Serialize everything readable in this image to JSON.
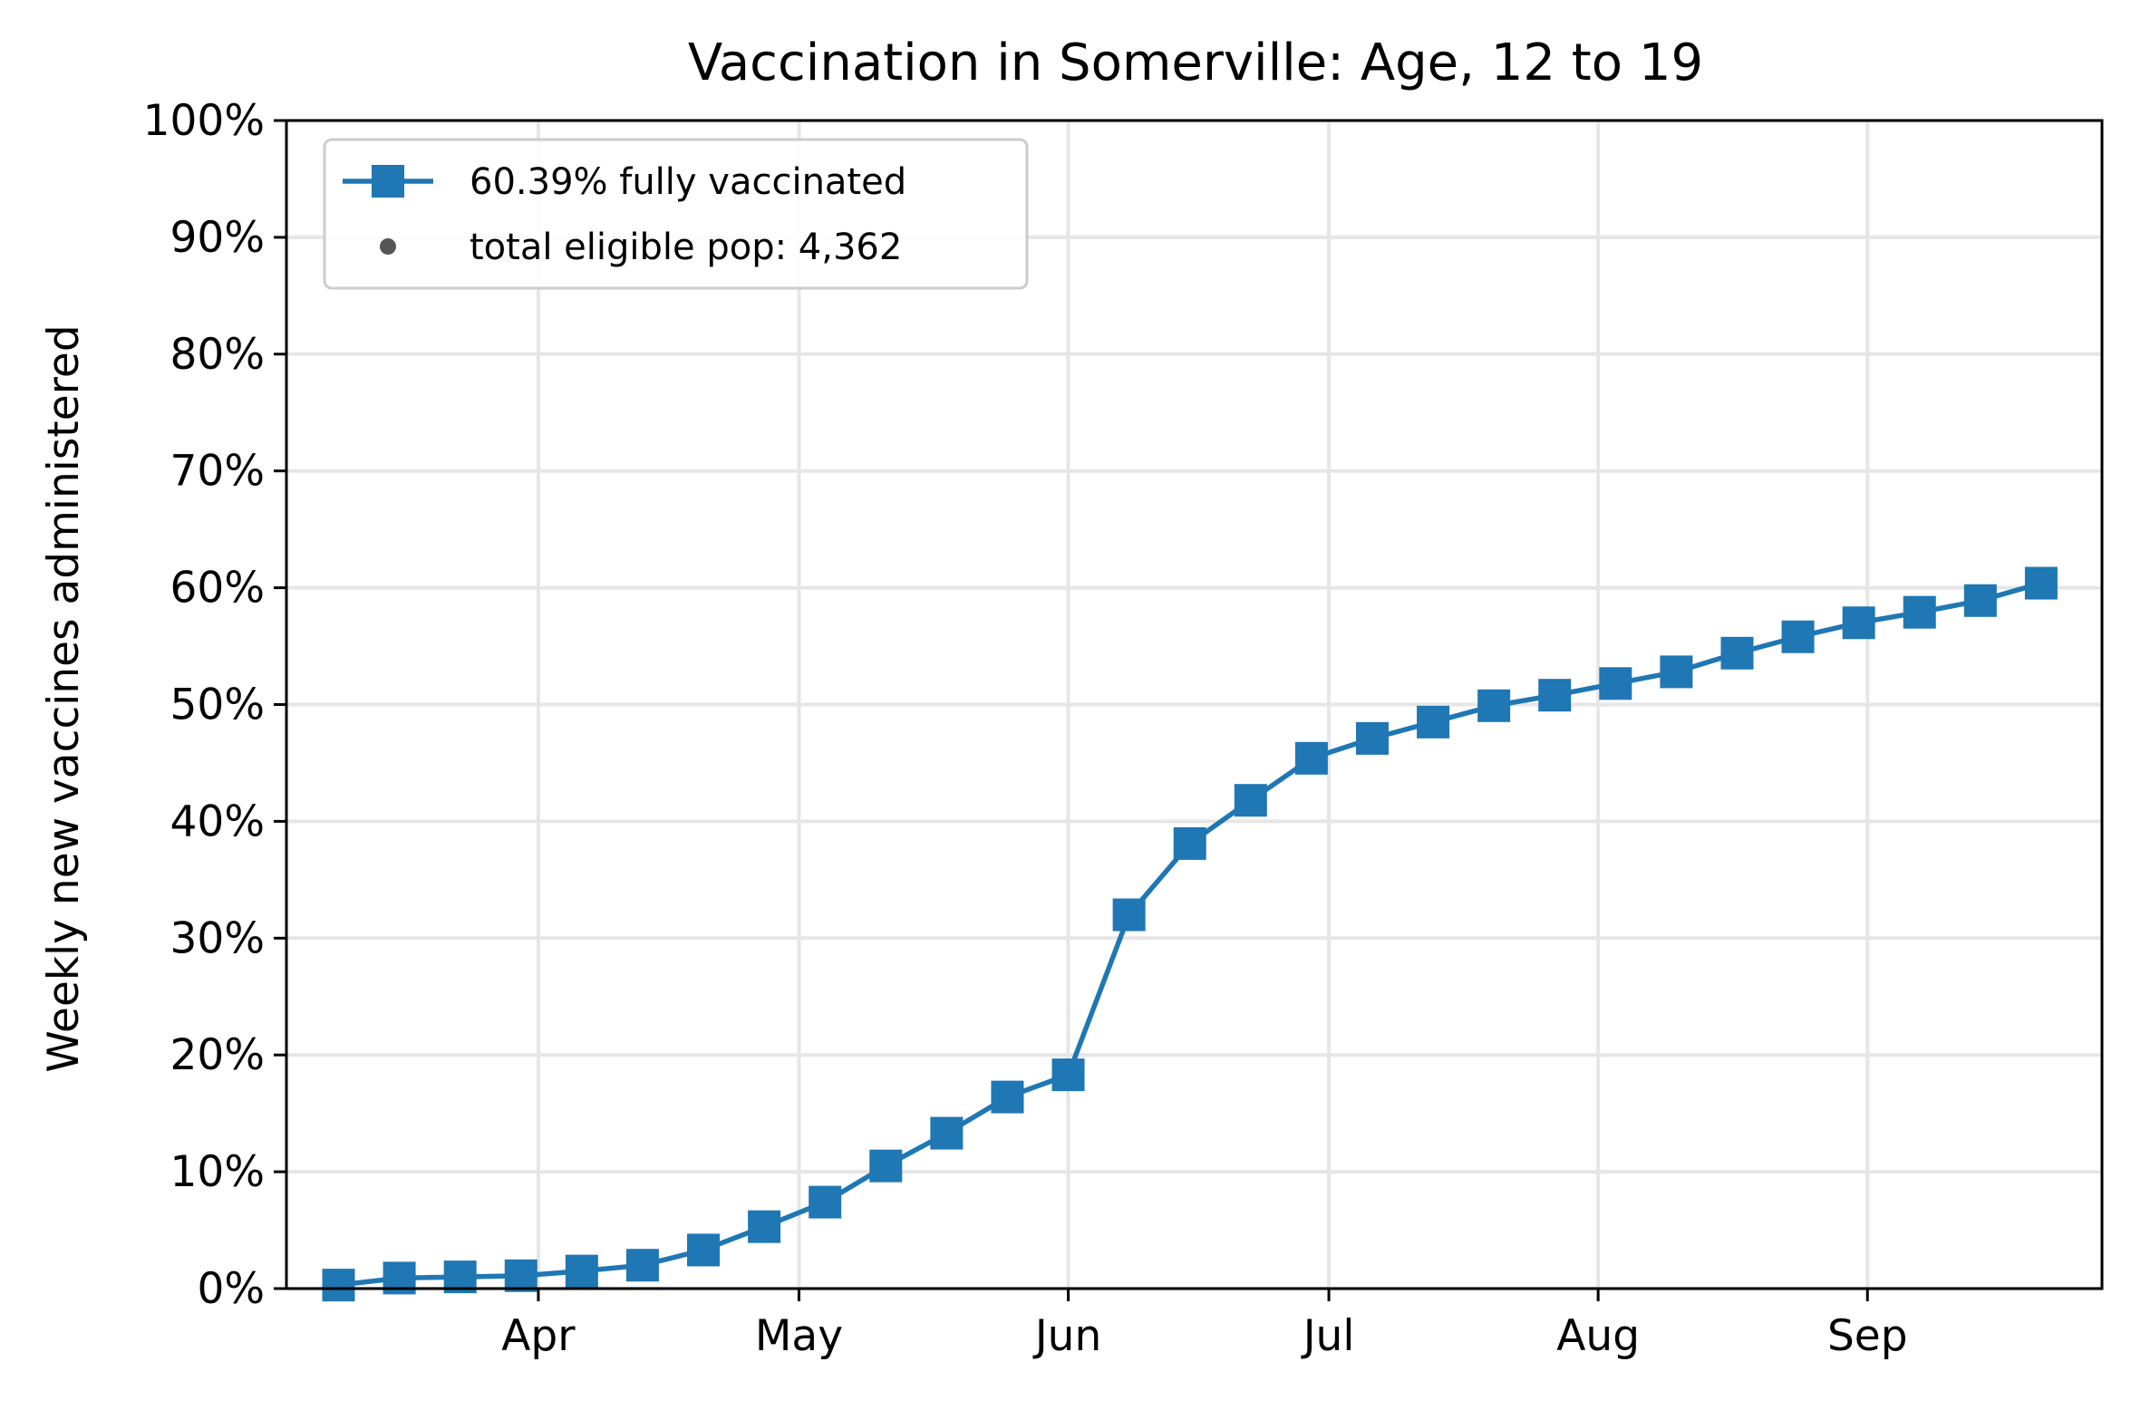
{
  "chart_data": {
    "type": "line",
    "title": "Vaccination in Somerville: Age, 12 to 19",
    "xlabel": "",
    "ylabel": "Weekly new vaccines administered",
    "ylim": [
      0,
      100
    ],
    "y_ticks": [
      "0%",
      "10%",
      "20%",
      "30%",
      "40%",
      "50%",
      "60%",
      "70%",
      "80%",
      "90%",
      "100%"
    ],
    "x_ticks": [
      {
        "date": "2021-04-01",
        "label": "Apr"
      },
      {
        "date": "2021-05-01",
        "label": "May"
      },
      {
        "date": "2021-06-01",
        "label": "Jun"
      },
      {
        "date": "2021-07-01",
        "label": "Jul"
      },
      {
        "date": "2021-08-01",
        "label": "Aug"
      },
      {
        "date": "2021-09-01",
        "label": "Sep"
      }
    ],
    "xlim": [
      "2021-03-03",
      "2021-09-28"
    ],
    "grid": true,
    "legend_position": "upper-left",
    "color": "#1f77b4",
    "series": [
      {
        "name": "60.39% fully vaccinated",
        "marker": "square",
        "x": [
          "2021-03-09",
          "2021-03-16",
          "2021-03-23",
          "2021-03-30",
          "2021-04-06",
          "2021-04-13",
          "2021-04-20",
          "2021-04-27",
          "2021-05-04",
          "2021-05-11",
          "2021-05-18",
          "2021-05-25",
          "2021-06-01",
          "2021-06-08",
          "2021-06-15",
          "2021-06-22",
          "2021-06-29",
          "2021-07-06",
          "2021-07-13",
          "2021-07-20",
          "2021-07-27",
          "2021-08-03",
          "2021-08-10",
          "2021-08-17",
          "2021-08-24",
          "2021-08-31",
          "2021-09-07",
          "2021-09-14",
          "2021-09-21"
        ],
        "values": [
          0.3,
          0.9,
          1.0,
          1.1,
          1.5,
          2.0,
          3.3,
          5.3,
          7.4,
          10.5,
          13.3,
          16.4,
          18.3,
          32.0,
          38.1,
          41.8,
          45.4,
          47.1,
          48.5,
          49.9,
          50.8,
          51.8,
          52.8,
          54.4,
          55.8,
          57.0,
          57.9,
          58.9,
          60.39
        ]
      }
    ],
    "legend_entries": [
      {
        "label": "60.39% fully vaccinated",
        "marker": "square-line",
        "color": "#1f77b4"
      },
      {
        "label": "total eligible pop: 4,362",
        "marker": "dot",
        "color": "#555555"
      }
    ]
  }
}
